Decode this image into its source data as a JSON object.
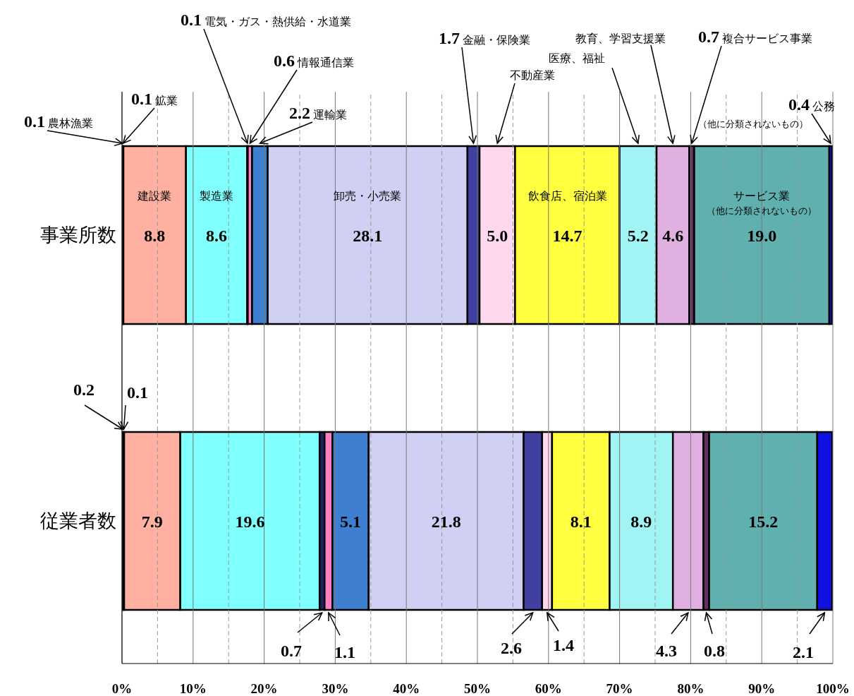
{
  "chart_data": {
    "type": "bar",
    "orientation": "horizontal",
    "stacked": true,
    "grid": "x",
    "categories": [
      "事業所数",
      "従業者数"
    ],
    "xlim": [
      0,
      100
    ],
    "xticks": [
      {
        "value": 0,
        "label": "0%"
      },
      {
        "value": 5,
        "label": null
      },
      {
        "value": 10,
        "label": "10%"
      },
      {
        "value": 15,
        "label": null
      },
      {
        "value": 20,
        "label": "20%"
      },
      {
        "value": 25,
        "label": null
      },
      {
        "value": 30,
        "label": "30%"
      },
      {
        "value": 35,
        "label": null
      },
      {
        "value": 40,
        "label": "40%"
      },
      {
        "value": 45,
        "label": null
      },
      {
        "value": 50,
        "label": "50%"
      },
      {
        "value": 55,
        "label": null
      },
      {
        "value": 60,
        "label": "60%"
      },
      {
        "value": 65,
        "label": null
      },
      {
        "value": 70,
        "label": "70%"
      },
      {
        "value": 75,
        "label": null
      },
      {
        "value": 80,
        "label": "80%"
      },
      {
        "value": 85,
        "label": null
      },
      {
        "value": 90,
        "label": "90%"
      },
      {
        "value": 95,
        "label": null
      },
      {
        "value": 100,
        "label": "100%"
      }
    ],
    "series": [
      {
        "name": "農林漁業",
        "color": "#ff7070",
        "values": [
          0.1,
          0.2
        ],
        "value_labels": [
          "0.1",
          "0.2"
        ]
      },
      {
        "name": "鉱業",
        "color": "#996633",
        "values": [
          0.1,
          0.1
        ],
        "value_labels": [
          "0.1",
          "0.1"
        ]
      },
      {
        "name": "建設業",
        "color": "#ffb0a0",
        "values": [
          8.8,
          7.9
        ],
        "value_labels": [
          "8.8",
          "7.9"
        ]
      },
      {
        "name": "製造業",
        "color": "#80ffff",
        "values": [
          8.6,
          19.6
        ],
        "value_labels": [
          "8.6",
          "19.6"
        ]
      },
      {
        "name": "電気・ガス・熱供給・水道業",
        "color": "#202060",
        "values": [
          0.1,
          0.7
        ],
        "value_labels": [
          "0.1",
          "0.7"
        ]
      },
      {
        "name": "情報通信業",
        "color": "#ff80c0",
        "values": [
          0.6,
          1.1
        ],
        "value_labels": [
          "0.6",
          "1.1"
        ]
      },
      {
        "name": "運輸業",
        "color": "#3f7fd0",
        "values": [
          2.2,
          5.1
        ],
        "value_labels": [
          "2.2",
          "5.1"
        ]
      },
      {
        "name": "卸売・小売業",
        "color": "#d0d0f4",
        "values": [
          28.1,
          21.8
        ],
        "value_labels": [
          "28.1",
          "21.8"
        ]
      },
      {
        "name": "金融・保険業",
        "color": "#4040a0",
        "values": [
          1.7,
          2.6
        ],
        "value_labels": [
          "1.7",
          "2.6"
        ]
      },
      {
        "name": "不動産業",
        "color": "#ffd8f0",
        "values": [
          5.0,
          1.4
        ],
        "value_labels": [
          "5.0",
          "1.4"
        ]
      },
      {
        "name": "飲食店、宿泊業",
        "color": "#ffff40",
        "values": [
          14.7,
          8.1
        ],
        "value_labels": [
          "14.7",
          "8.1"
        ]
      },
      {
        "name": "医療、福祉",
        "color": "#a0f4f4",
        "values": [
          5.2,
          8.9
        ],
        "value_labels": [
          "5.2",
          "8.9"
        ]
      },
      {
        "name": "教育、学習支援業",
        "color": "#e0b0e0",
        "values": [
          4.6,
          4.3
        ],
        "value_labels": [
          "4.6",
          "4.3"
        ]
      },
      {
        "name": "複合サービス事業",
        "color": "#603060",
        "values": [
          0.7,
          0.8
        ],
        "value_labels": [
          "0.7",
          "0.8"
        ]
      },
      {
        "name": "サービス業（他に分類されないもの）",
        "color": "#60b0b0",
        "values": [
          19.0,
          15.2
        ],
        "value_labels": [
          "19.0",
          "15.2"
        ]
      },
      {
        "name": "公務（他に分類されないもの）",
        "color": "#1010e0",
        "values": [
          0.4,
          2.1
        ],
        "value_labels": [
          "0.4",
          "2.1"
        ]
      }
    ]
  }
}
